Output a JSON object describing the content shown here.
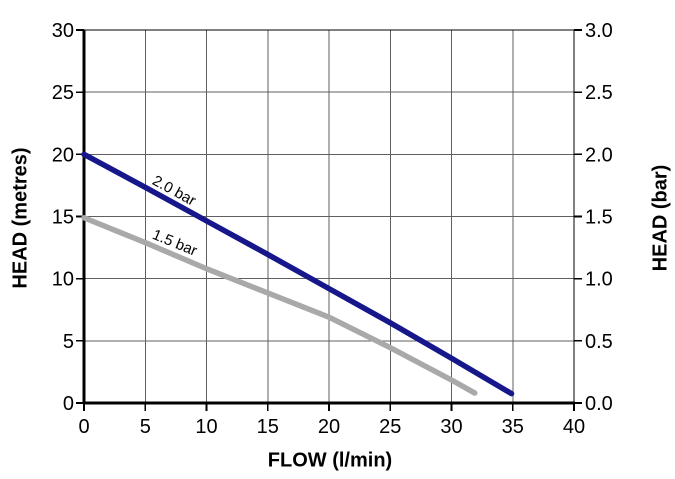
{
  "chart_data": {
    "type": "line",
    "title": "",
    "xlabel": "FLOW (l/min)",
    "ylabel_left": "HEAD (metres)",
    "ylabel_right": "HEAD (bar)",
    "xlim": [
      0,
      40
    ],
    "ylim_left": [
      0,
      30
    ],
    "ylim_right": [
      0.0,
      3.0
    ],
    "x_ticks": [
      0,
      5,
      10,
      15,
      20,
      25,
      30,
      35,
      40
    ],
    "y_left_ticks": [
      0,
      5,
      10,
      15,
      20,
      25,
      30
    ],
    "y_right_ticks": [
      "0.0",
      "0.5",
      "1.0",
      "1.5",
      "2.0",
      "2.5",
      "3.0"
    ],
    "grid": true,
    "legend": "inline-rotated-labels",
    "colors": {
      "background": "#ffffff",
      "grid": "#5f5f5f",
      "axis": "#000000",
      "series_2_0_bar": "#17178c",
      "series_1_5_bar": "#a9a9a9"
    },
    "series": [
      {
        "name": "2.0 bar",
        "color": "#17178c",
        "x": [
          0,
          5,
          10,
          15,
          20,
          25,
          30,
          34.9
        ],
        "y": [
          20,
          17.35,
          14.65,
          11.95,
          9.2,
          6.45,
          3.6,
          0.75
        ]
      },
      {
        "name": "1.5 bar",
        "color": "#a9a9a9",
        "x": [
          0,
          5,
          10,
          15,
          20,
          25,
          30,
          31.9
        ],
        "y": [
          14.9,
          12.9,
          10.8,
          8.85,
          6.9,
          4.45,
          1.85,
          0.8
        ]
      }
    ]
  }
}
